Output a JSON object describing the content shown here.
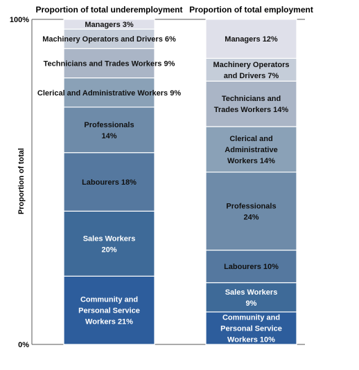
{
  "chart_data": {
    "type": "bar",
    "stacked": true,
    "ylabel": "Proportion of total",
    "ylim": [
      0,
      100
    ],
    "y_tick_labels": [
      "0%",
      "100%"
    ],
    "series_order_bottom_to_top": [
      "Community and Personal Service Workers",
      "Sales Workers",
      "Labourers",
      "Professionals",
      "Clerical and Administrative Workers",
      "Technicians and Trades Workers",
      "Machinery Operators and Drivers",
      "Managers"
    ],
    "colors": [
      "#2d5d9c",
      "#3e6a98",
      "#55789f",
      "#6e8ba9",
      "#8aa1b7",
      "#aab5c6",
      "#c5cdd9",
      "#dfe0ea"
    ],
    "columns": [
      {
        "title": "Proportion of total underemployment",
        "segments": [
          {
            "lines": [
              "Community and",
              "Personal Service",
              "Workers 21%"
            ],
            "value": 21
          },
          {
            "lines": [
              "Sales Workers",
              "20%"
            ],
            "value": 20
          },
          {
            "lines": [
              "Labourers 18%"
            ],
            "value": 18
          },
          {
            "lines": [
              "Professionals",
              "14%"
            ],
            "value": 14
          },
          {
            "lines": [
              "Clerical and Administrative Workers 9%"
            ],
            "value": 9
          },
          {
            "lines": [
              "Technicians  and Trades Workers 9%"
            ],
            "value": 9
          },
          {
            "lines": [
              "Machinery Operators and Drivers 6%"
            ],
            "value": 6
          },
          {
            "lines": [
              "Managers  3%"
            ],
            "value": 3
          }
        ]
      },
      {
        "title": "Proportion of total employment",
        "segments": [
          {
            "lines": [
              "Community and",
              "Personal Service",
              "Workers 10%"
            ],
            "value": 10
          },
          {
            "lines": [
              "Sales Workers",
              "9%"
            ],
            "value": 9
          },
          {
            "lines": [
              "Labourers 10%"
            ],
            "value": 10
          },
          {
            "lines": [
              "Professionals",
              "24%"
            ],
            "value": 24
          },
          {
            "lines": [
              "Clerical and",
              "Administrative",
              "Workers 14%"
            ],
            "value": 14
          },
          {
            "lines": [
              "Technicians  and",
              "Trades Workers 14%"
            ],
            "value": 14
          },
          {
            "lines": [
              "Machinery Operators",
              "and Drivers 7%"
            ],
            "value": 7
          },
          {
            "lines": [
              "Managers   12%"
            ],
            "value": 12
          }
        ]
      }
    ]
  }
}
